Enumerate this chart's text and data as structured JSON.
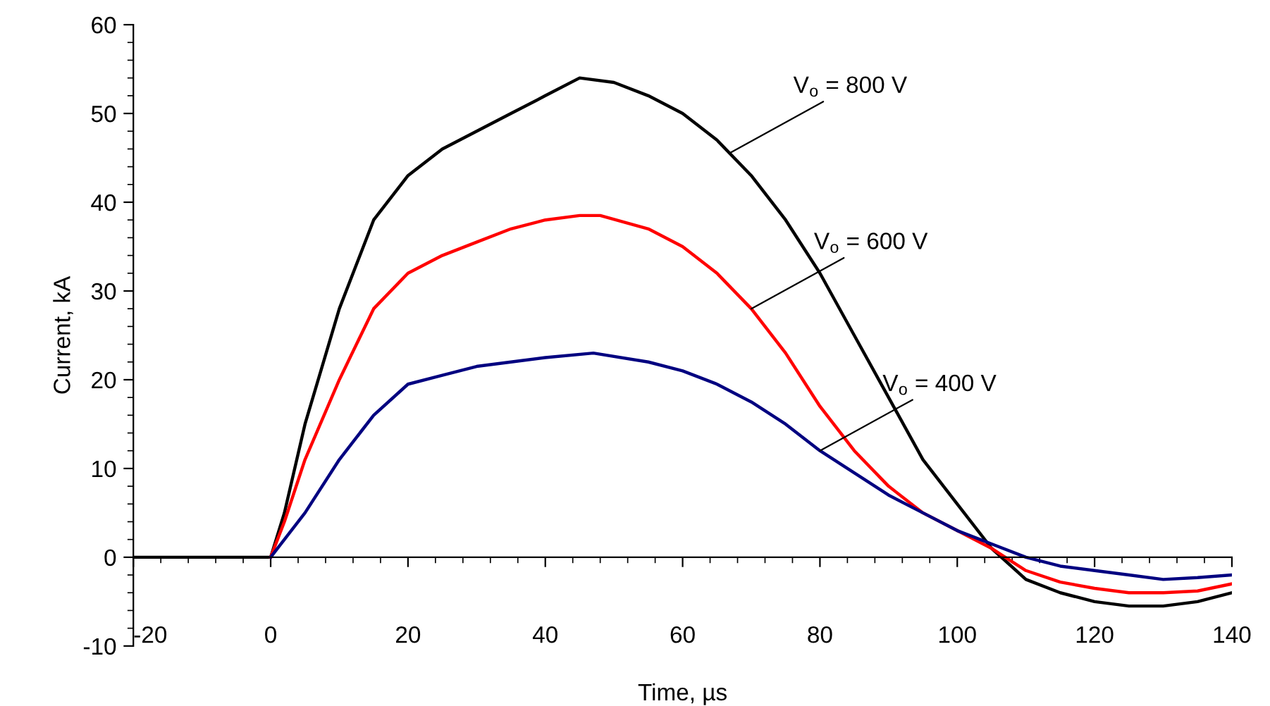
{
  "chart_data": {
    "type": "line",
    "xlabel": "Time, µs",
    "ylabel": "Current, kA",
    "xlim": [
      -20,
      140
    ],
    "xticks": [
      -20,
      0,
      20,
      40,
      60,
      80,
      100,
      120,
      140
    ],
    "ylim": [
      -10,
      60
    ],
    "yticks": [
      -10,
      0,
      10,
      20,
      30,
      40,
      50,
      60
    ],
    "legend": false,
    "marker": "none",
    "line_style": "solid",
    "annotations": [
      {
        "text": "V$_{o}$ = 800 V",
        "x": 67,
        "y": 45.6
      },
      {
        "text": "V$_{o}$ = 600 V",
        "x": 70,
        "y": 28
      },
      {
        "text": "V$_{o}$ = 400 V",
        "x": 80,
        "y": 12
      }
    ],
    "series": [
      {
        "color": "#000000",
        "x": [
          -20,
          -15,
          -10,
          -5,
          0,
          2,
          5,
          10,
          15,
          20,
          25,
          30,
          35,
          40,
          45,
          50,
          55,
          60,
          65,
          70,
          75,
          80,
          85,
          90,
          95,
          100,
          105,
          110,
          115,
          120,
          125,
          130,
          135,
          140
        ],
        "values": [
          0,
          0,
          0,
          0,
          0,
          5,
          15,
          28,
          38,
          43,
          46,
          48,
          50,
          52,
          54,
          53.5,
          52,
          50,
          47,
          43,
          38,
          32,
          25,
          18,
          11,
          6,
          1,
          -2.5,
          -4,
          -5,
          -5.5,
          -5.5,
          -5,
          -4
        ]
      },
      {
        "color": "#ff0000",
        "x": [
          0,
          2,
          5,
          10,
          15,
          20,
          25,
          30,
          35,
          40,
          45,
          48,
          55,
          60,
          65,
          70,
          75,
          80,
          85,
          90,
          95,
          100,
          105,
          110,
          115,
          120,
          125,
          130,
          135,
          140
        ],
        "values": [
          0,
          4,
          11,
          20,
          28,
          32,
          34,
          35.5,
          37,
          38,
          38.5,
          38.5,
          37,
          35,
          32,
          28,
          23,
          17,
          12,
          8,
          5,
          3,
          1,
          -1.5,
          -2.8,
          -3.5,
          -4,
          -4,
          -3.8,
          -3
        ]
      },
      {
        "color": "#000080",
        "x": [
          0,
          5,
          10,
          15,
          20,
          25,
          30,
          35,
          40,
          47,
          55,
          60,
          65,
          70,
          75,
          80,
          85,
          90,
          95,
          100,
          105,
          110,
          115,
          120,
          125,
          130,
          135,
          140
        ],
        "values": [
          0,
          5,
          11,
          16,
          19.5,
          20.5,
          21.5,
          22,
          22.5,
          23,
          22,
          21,
          19.5,
          17.5,
          15,
          12,
          9.5,
          7,
          5,
          3,
          1.5,
          0,
          -1,
          -1.5,
          -2,
          -2.5,
          -2.3,
          -2
        ]
      }
    ]
  }
}
